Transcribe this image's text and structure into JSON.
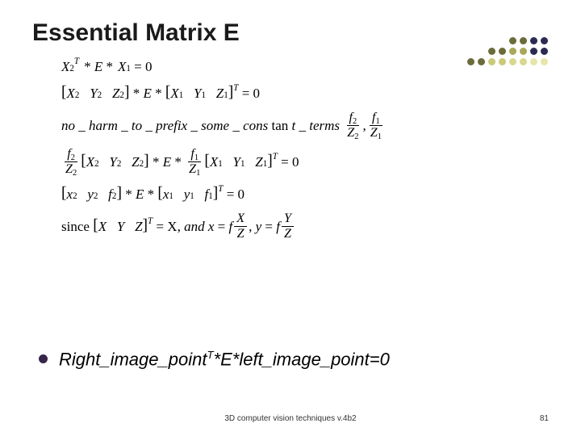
{
  "title": "Essential Matrix E",
  "dots": {
    "colors_row1": [
      "#fff",
      "#fff",
      "#fff",
      "#fff",
      "#6b6b3b",
      "#6b6b3b",
      "#2a2a52",
      "#2a2a52"
    ],
    "colors_row2": [
      "#fff",
      "#fff",
      "#6b6b3b",
      "#6b6b3b",
      "#a8a85a",
      "#a8a85a",
      "#2a2a52",
      "#2a2a52"
    ],
    "colors_row3": [
      "#6b6b3b",
      "#6b6b3b",
      "#c9c97a",
      "#c9c97a",
      "#d8d88f",
      "#d8d88f",
      "#e6e6a8",
      "#e6e6a8"
    ]
  },
  "eq": {
    "X2T": "X",
    "sub2": "2",
    "supT": "T",
    "star": "*",
    "E": "E",
    "X1": "X",
    "sub1": "1",
    "eq0": "= 0",
    "lb": "[",
    "rb": "]",
    "X": "X",
    "Y": "Y",
    "Z": "Z",
    "noharm": "no _ harm _ to _ prefix _ some _ cons",
    "tant": "tan",
    "tterms": "t _ terms",
    "comma": ",",
    "f": "f",
    "x": "x",
    "y": "y",
    "since": "since",
    "and": ", and ",
    "eq": "=",
    "Xbig": "X"
  },
  "bullet": {
    "color": "#37254a",
    "pre": "Right_image_point",
    "T": "T",
    "post": "*E*left_image_point=0"
  },
  "footer": {
    "center": "3D computer vision techniques v.4b2",
    "page": "81"
  }
}
